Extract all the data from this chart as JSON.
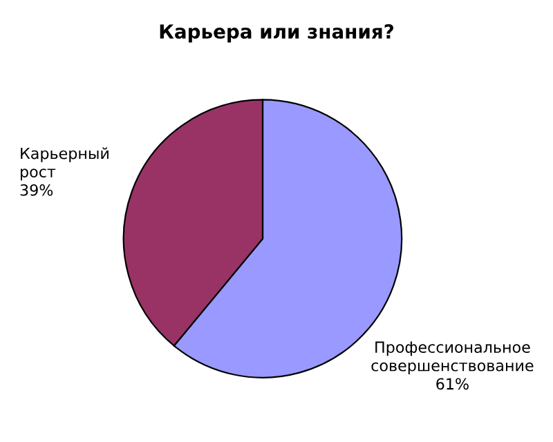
{
  "chart_data": {
    "type": "pie",
    "title": "Карьера или знания?",
    "categories": [
      "Профессиональное\nсовершенствование",
      "Карьерный\nрост"
    ],
    "values": [
      61,
      39
    ],
    "value_labels": [
      "61%",
      "39%"
    ],
    "colors": [
      "#9999ff",
      "#993366"
    ],
    "legend": false
  }
}
